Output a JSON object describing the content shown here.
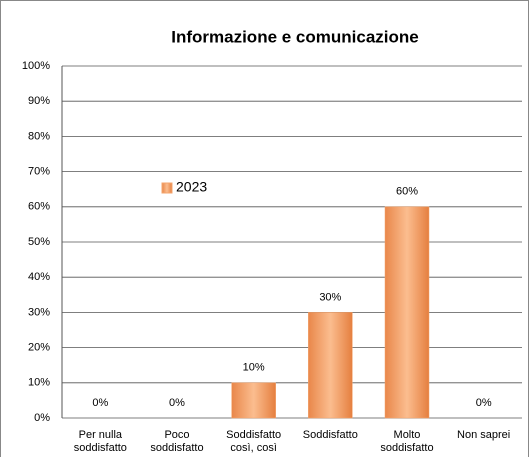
{
  "chart_data": {
    "type": "bar",
    "title": "Informazione e comunicazione",
    "categories": [
      "Per nulla soddisfatto",
      "Poco soddisfatto",
      "Soddisfatto così, così",
      "Soddisfatto",
      "Molto soddisfatto",
      "Non saprei"
    ],
    "series": [
      {
        "name": "2023",
        "color": "#f4a46c",
        "values": [
          0,
          0,
          10,
          30,
          60,
          0
        ],
        "value_labels": [
          "0%",
          "0%",
          "10%",
          "30%",
          "60%",
          "0%"
        ]
      }
    ],
    "ylim": [
      0,
      100
    ],
    "yticks": [
      {
        "value": 0,
        "label": "0%"
      },
      {
        "value": 10,
        "label": "10%"
      },
      {
        "value": 20,
        "label": "20%"
      },
      {
        "value": 30,
        "label": "30%"
      },
      {
        "value": 40,
        "label": "40%"
      },
      {
        "value": 50,
        "label": "50%"
      },
      {
        "value": 60,
        "label": "60%"
      },
      {
        "value": 70,
        "label": "70%"
      },
      {
        "value": 80,
        "label": "80%"
      },
      {
        "value": 90,
        "label": "90%"
      },
      {
        "value": 100,
        "label": "100%"
      }
    ],
    "grid": true,
    "legend": "left"
  }
}
